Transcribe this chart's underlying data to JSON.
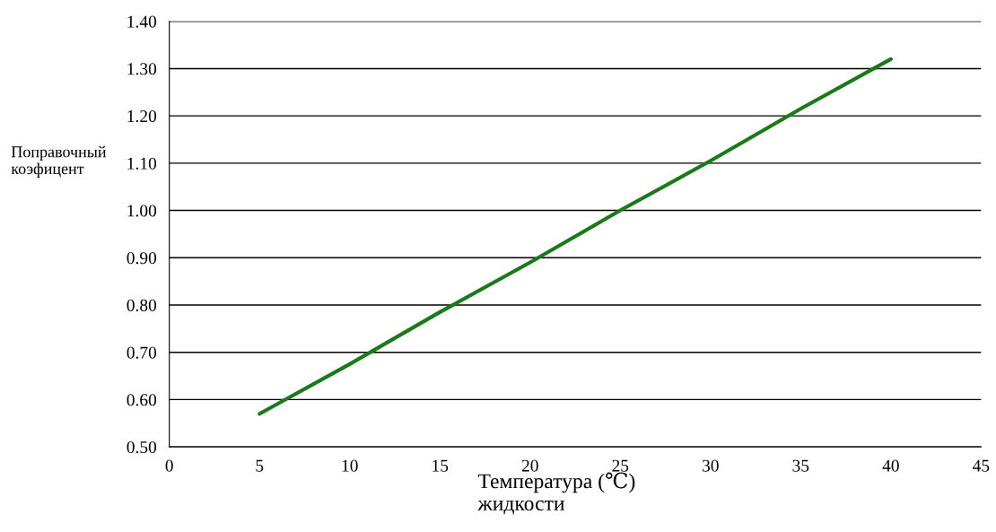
{
  "chart_data": {
    "type": "line",
    "xlabel": "Температура (℃)\nжидкости",
    "ylabel": "Поправочный\nкоэфицент",
    "x": [
      5,
      10,
      15,
      20,
      25,
      30,
      35,
      40
    ],
    "series": [
      {
        "color": "#1a7a1a",
        "values": [
          0.57,
          0.675,
          0.785,
          0.89,
          1.0,
          1.105,
          1.215,
          1.32
        ]
      }
    ],
    "xlim": [
      0,
      45
    ],
    "xticks": [
      0,
      5,
      10,
      15,
      20,
      25,
      30,
      35,
      40,
      45
    ],
    "ylim": [
      0.5,
      1.4
    ],
    "yticks": [
      {
        "value": 0.5,
        "label": "0.50"
      },
      {
        "value": 0.6,
        "label": "0.60"
      },
      {
        "value": 0.7,
        "label": "0.70"
      },
      {
        "value": 0.8,
        "label": "0.80"
      },
      {
        "value": 0.9,
        "label": "0.90"
      },
      {
        "value": 1.0,
        "label": "1.00"
      },
      {
        "value": 1.1,
        "label": "1.10"
      },
      {
        "value": 1.2,
        "label": "1.20"
      },
      {
        "value": 1.3,
        "label": "1.30"
      },
      {
        "value": 1.4,
        "label": "1.40"
      }
    ],
    "grid": "y",
    "legend": false,
    "marker": "none",
    "line_style": "solid"
  }
}
